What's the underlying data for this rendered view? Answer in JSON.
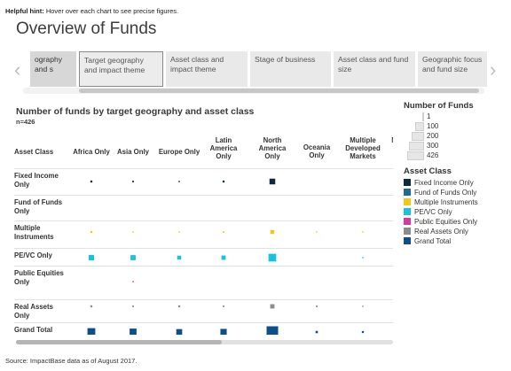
{
  "hint": {
    "bold": "Helpful hint:",
    "text": " Hover over each chart to see precise figures."
  },
  "title": "Overview of Funds",
  "tabs": [
    {
      "label": "ography and s",
      "state": "partial"
    },
    {
      "label": "Target geography and impact theme",
      "state": "selected"
    },
    {
      "label": "Asset class and impact theme",
      "state": "normal"
    },
    {
      "label": "Stage of business",
      "state": "normal"
    },
    {
      "label": "Asset class and fund size",
      "state": "normal"
    },
    {
      "label": "Geographic focus and fund size",
      "state": "normal"
    }
  ],
  "arrows": {
    "left": "‹",
    "right": "›"
  },
  "chart_data": {
    "type": "table",
    "title": "Number of funds by target geography and asset class",
    "subtitle": "n=426",
    "row_header_label": "Asset Class",
    "columns": [
      "Africa Only",
      "Asia Only",
      "Europe Only",
      "Latin America Only",
      "North America Only",
      "Oceania Only",
      "Multiple Developed Markets",
      "Multiple Emerging Markets"
    ],
    "column_labels_visible": [
      "Africa Only",
      "Asia Only",
      "Europe Only",
      "Latin America Only",
      "North America Only",
      "Oceania Only",
      "Multiple Developed Markets",
      "Mu Em Ma"
    ],
    "rows": [
      {
        "label": "Fixed Income Only",
        "color": "#0f2a3d",
        "values": [
          3,
          2,
          1,
          3,
          25,
          null,
          null,
          null
        ]
      },
      {
        "label": "Fund of Funds Only",
        "color": "#1e6b9a",
        "values": [
          null,
          null,
          null,
          null,
          null,
          null,
          null,
          null
        ]
      },
      {
        "label": "Multiple Instruments",
        "color": "#f5c518",
        "values": [
          3,
          1,
          1,
          2,
          12,
          1,
          1,
          null
        ]
      },
      {
        "label": "PE/VC Only",
        "color": "#19c2e0",
        "values": [
          22,
          20,
          12,
          14,
          45,
          null,
          1,
          null
        ]
      },
      {
        "label": "Public Equities Only",
        "color": "#d63aa0",
        "values": [
          null,
          1,
          null,
          null,
          null,
          null,
          null,
          null
        ]
      },
      {
        "label": "Real Assets Only",
        "color": "#8c8c8c",
        "values": [
          3,
          2,
          3,
          2,
          14,
          2,
          1,
          null
        ]
      },
      {
        "label": "Grand Total",
        "color": "#0d4f8b",
        "values": [
          46,
          36,
          26,
          30,
          100,
          4,
          3,
          null
        ]
      }
    ],
    "size_legend": [
      1,
      100,
      200,
      300,
      426
    ]
  },
  "legend": {
    "size_title": "Number of Funds",
    "color_title": "Asset Class",
    "size_items": [
      "1",
      "100",
      "200",
      "300",
      "426"
    ],
    "color_items": [
      {
        "label": "Fixed Income Only",
        "color": "#0f2a3d"
      },
      {
        "label": "Fund of Funds Only",
        "color": "#1e6b9a"
      },
      {
        "label": "Multiple Instruments",
        "color": "#f5c518"
      },
      {
        "label": "PE/VC Only",
        "color": "#19c2e0"
      },
      {
        "label": "Public Equities Only",
        "color": "#d63aa0"
      },
      {
        "label": "Real Assets Only",
        "color": "#8c8c8c"
      },
      {
        "label": "Grand Total",
        "color": "#0d4f8b"
      }
    ]
  },
  "source": "Source: ImpactBase data as of August 2017."
}
